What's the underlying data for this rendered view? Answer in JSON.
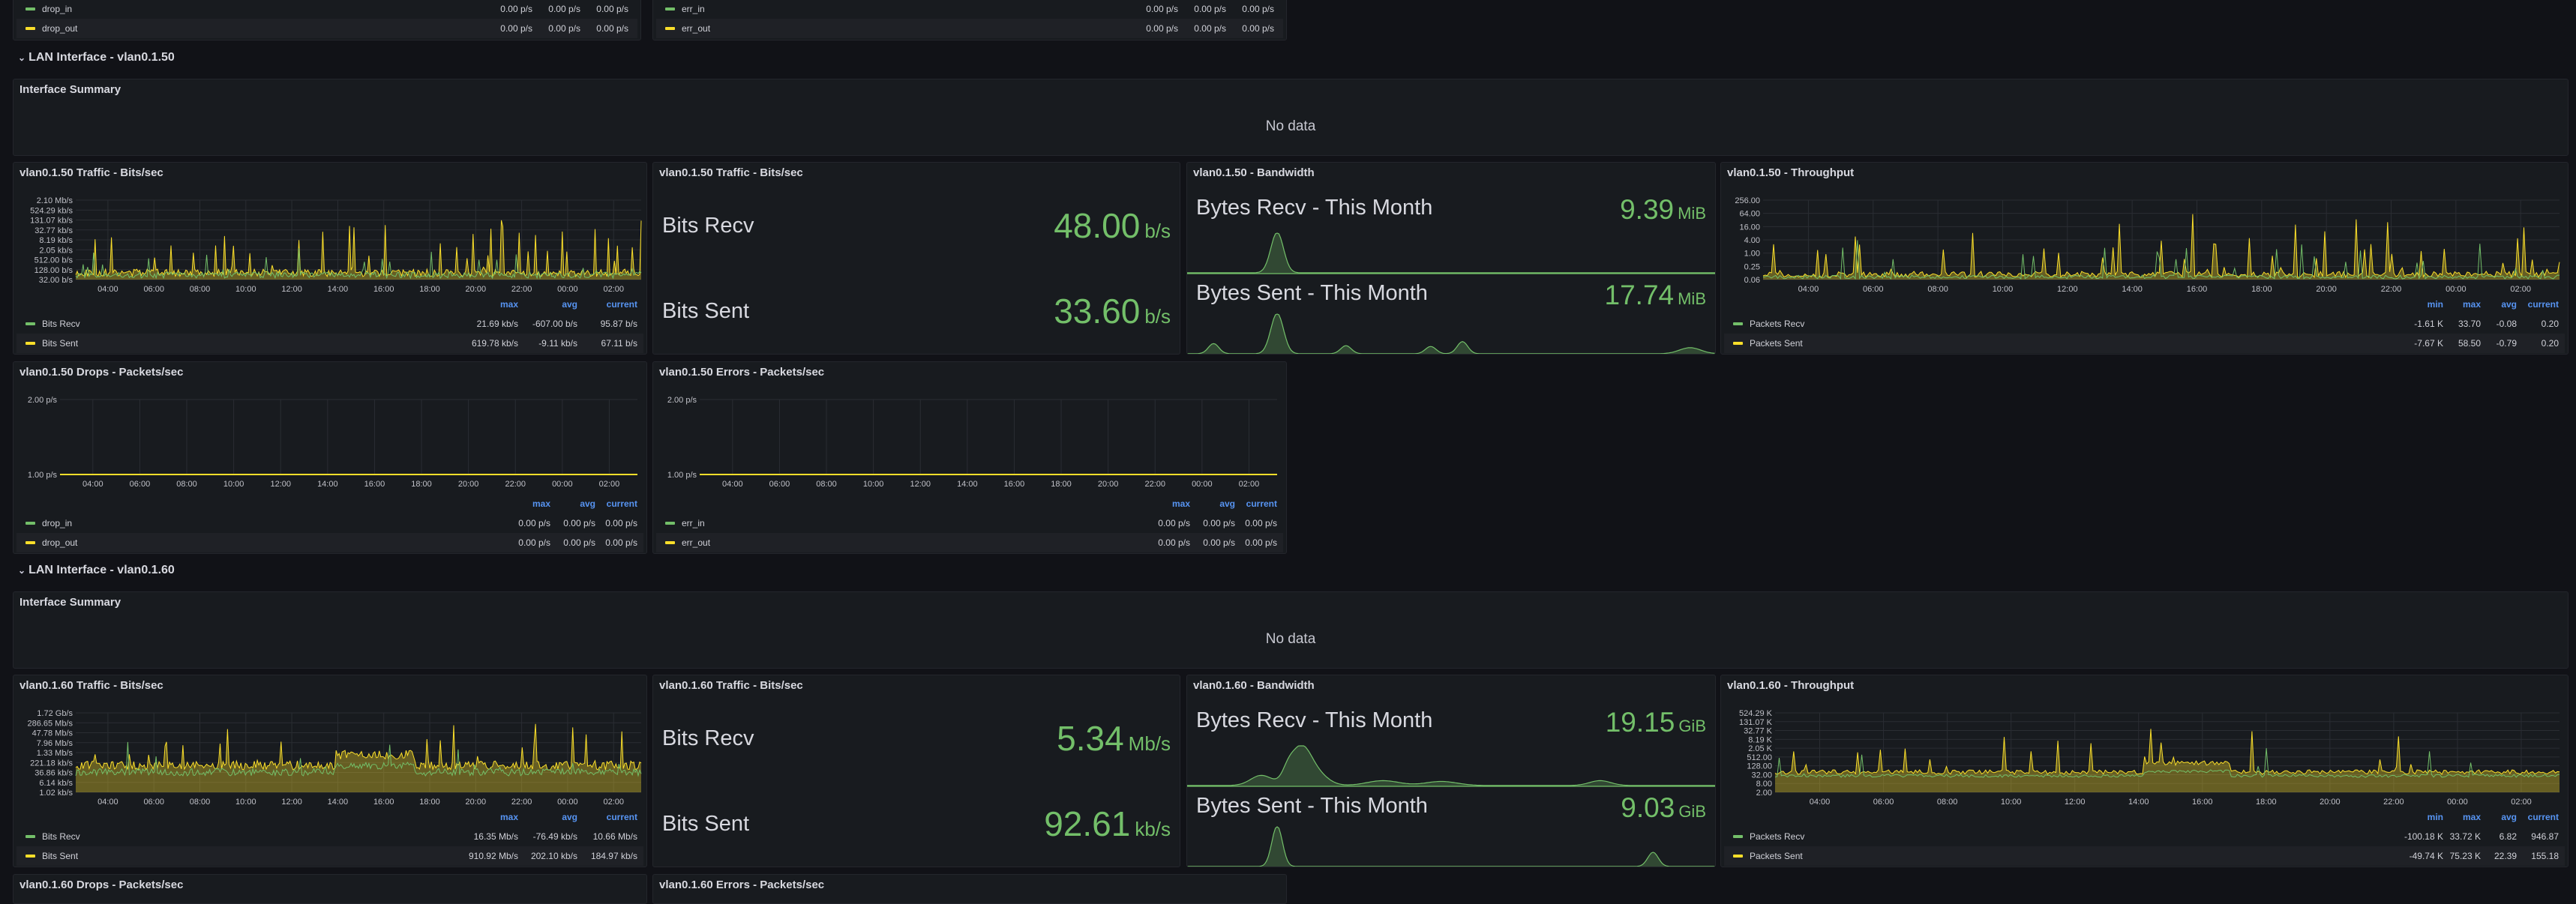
{
  "top": {
    "drops": {
      "rows": [
        {
          "name": "drop_in",
          "max": "0.00 p/s",
          "avg": "0.00 p/s",
          "current": "0.00 p/s"
        },
        {
          "name": "drop_out",
          "max": "0.00 p/s",
          "avg": "0.00 p/s",
          "current": "0.00 p/s"
        }
      ]
    },
    "errors": {
      "rows": [
        {
          "name": "err_in",
          "max": "0.00 p/s",
          "avg": "0.00 p/s",
          "current": "0.00 p/s"
        },
        {
          "name": "err_out",
          "max": "0.00 p/s",
          "avg": "0.00 p/s",
          "current": "0.00 p/s"
        }
      ]
    }
  },
  "colors": {
    "green": "#73bf69",
    "yellow": "#fade2a",
    "blue": "#5794f2",
    "bg": "#111217",
    "panel": "#181b1f"
  },
  "headers": {
    "min": "min",
    "max": "max",
    "avg": "avg",
    "current": "current"
  },
  "sections": [
    {
      "row_title": "LAN Interface - vlan0.1.50",
      "summary": {
        "title": "Interface Summary",
        "message": "No data"
      },
      "traffic_chart": {
        "title": "vlan0.1.50 Traffic - Bits/sec",
        "y_ticks": [
          "2.10 Mb/s",
          "524.29 kb/s",
          "131.07 kb/s",
          "32.77 kb/s",
          "8.19 kb/s",
          "2.05 kb/s",
          "512.00 b/s",
          "128.00 b/s",
          "32.00 b/s"
        ],
        "x_ticks": [
          "04:00",
          "06:00",
          "08:00",
          "10:00",
          "12:00",
          "14:00",
          "16:00",
          "18:00",
          "20:00",
          "22:00",
          "00:00",
          "02:00"
        ],
        "legend": [
          {
            "name": "Bits Recv",
            "max": "21.69 kb/s",
            "avg": "-607.00 b/s",
            "current": "95.87 b/s"
          },
          {
            "name": "Bits Sent",
            "max": "619.78 kb/s",
            "avg": "-9.11 kb/s",
            "current": "67.11 b/s"
          }
        ]
      },
      "stat": {
        "title": "vlan0.1.50 Traffic - Bits/sec",
        "recv_label": "Bits Recv",
        "recv_value": "48.00",
        "recv_unit": "b/s",
        "sent_label": "Bits Sent",
        "sent_value": "33.60",
        "sent_unit": "b/s"
      },
      "bandwidth": {
        "title": "vlan0.1.50 - Bandwidth",
        "recv_label": "Bytes Recv - This Month",
        "recv_value": "9.39",
        "recv_unit": "MiB",
        "sent_label": "Bytes Sent - This Month",
        "sent_value": "17.74",
        "sent_unit": "MiB"
      },
      "throughput": {
        "title": "vlan0.1.50 - Throughput",
        "y_ticks": [
          "256.00",
          "64.00",
          "16.00",
          "4.00",
          "1.00",
          "0.25",
          "0.06"
        ],
        "x_ticks": [
          "04:00",
          "06:00",
          "08:00",
          "10:00",
          "12:00",
          "14:00",
          "16:00",
          "18:00",
          "20:00",
          "22:00",
          "00:00",
          "02:00"
        ],
        "legend": [
          {
            "name": "Packets Recv",
            "min": "-1.61 K",
            "max": "33.70",
            "avg": "-0.08",
            "current": "0.20"
          },
          {
            "name": "Packets Sent",
            "min": "-7.67 K",
            "max": "58.50",
            "avg": "-0.79",
            "current": "0.20"
          }
        ]
      },
      "drops": {
        "title": "vlan0.1.50 Drops - Packets/sec",
        "y_ticks": [
          "2.00 p/s",
          "1.00 p/s"
        ],
        "x_ticks": [
          "04:00",
          "06:00",
          "08:00",
          "10:00",
          "12:00",
          "14:00",
          "16:00",
          "18:00",
          "20:00",
          "22:00",
          "00:00",
          "02:00"
        ],
        "legend": [
          {
            "name": "drop_in",
            "max": "0.00 p/s",
            "avg": "0.00 p/s",
            "current": "0.00 p/s"
          },
          {
            "name": "drop_out",
            "max": "0.00 p/s",
            "avg": "0.00 p/s",
            "current": "0.00 p/s"
          }
        ]
      },
      "errors": {
        "title": "vlan0.1.50 Errors - Packets/sec",
        "y_ticks": [
          "2.00 p/s",
          "1.00 p/s"
        ],
        "x_ticks": [
          "04:00",
          "06:00",
          "08:00",
          "10:00",
          "12:00",
          "14:00",
          "16:00",
          "18:00",
          "20:00",
          "22:00",
          "00:00",
          "02:00"
        ],
        "legend": [
          {
            "name": "err_in",
            "max": "0.00 p/s",
            "avg": "0.00 p/s",
            "current": "0.00 p/s"
          },
          {
            "name": "err_out",
            "max": "0.00 p/s",
            "avg": "0.00 p/s",
            "current": "0.00 p/s"
          }
        ]
      }
    },
    {
      "row_title": "LAN Interface - vlan0.1.60",
      "summary": {
        "title": "Interface Summary",
        "message": "No data"
      },
      "traffic_chart": {
        "title": "vlan0.1.60 Traffic - Bits/sec",
        "y_ticks": [
          "1.72 Gb/s",
          "286.65 Mb/s",
          "47.78 Mb/s",
          "7.96 Mb/s",
          "1.33 Mb/s",
          "221.18 kb/s",
          "36.86 kb/s",
          "6.14 kb/s",
          "1.02 kb/s"
        ],
        "x_ticks": [
          "04:00",
          "06:00",
          "08:00",
          "10:00",
          "12:00",
          "14:00",
          "16:00",
          "18:00",
          "20:00",
          "22:00",
          "00:00",
          "02:00"
        ],
        "legend": [
          {
            "name": "Bits Recv",
            "max": "16.35 Mb/s",
            "avg": "-76.49 kb/s",
            "current": "10.66 Mb/s"
          },
          {
            "name": "Bits Sent",
            "max": "910.92 Mb/s",
            "avg": "202.10 kb/s",
            "current": "184.97 kb/s"
          }
        ]
      },
      "stat": {
        "title": "vlan0.1.60 Traffic - Bits/sec",
        "recv_label": "Bits Recv",
        "recv_value": "5.34",
        "recv_unit": "Mb/s",
        "sent_label": "Bits Sent",
        "sent_value": "92.61",
        "sent_unit": "kb/s"
      },
      "bandwidth": {
        "title": "vlan0.1.60 - Bandwidth",
        "recv_label": "Bytes Recv - This Month",
        "recv_value": "19.15",
        "recv_unit": "GiB",
        "sent_label": "Bytes Sent - This Month",
        "sent_value": "9.03",
        "sent_unit": "GiB"
      },
      "throughput": {
        "title": "vlan0.1.60 - Throughput",
        "y_ticks": [
          "524.29 K",
          "131.07 K",
          "32.77 K",
          "8.19 K",
          "2.05 K",
          "512.00",
          "128.00",
          "32.00",
          "8.00",
          "2.00"
        ],
        "x_ticks": [
          "04:00",
          "06:00",
          "08:00",
          "10:00",
          "12:00",
          "14:00",
          "16:00",
          "18:00",
          "20:00",
          "22:00",
          "00:00",
          "02:00"
        ],
        "legend": [
          {
            "name": "Packets Recv",
            "min": "-100.18 K",
            "max": "33.72 K",
            "avg": "6.82",
            "current": "946.87"
          },
          {
            "name": "Packets Sent",
            "min": "-49.74 K",
            "max": "75.23 K",
            "avg": "22.39",
            "current": "155.18"
          }
        ]
      }
    }
  ],
  "bottom": {
    "drops_title": "vlan0.1.60 Drops - Packets/sec",
    "errors_title": "vlan0.1.60 Errors - Packets/sec"
  }
}
